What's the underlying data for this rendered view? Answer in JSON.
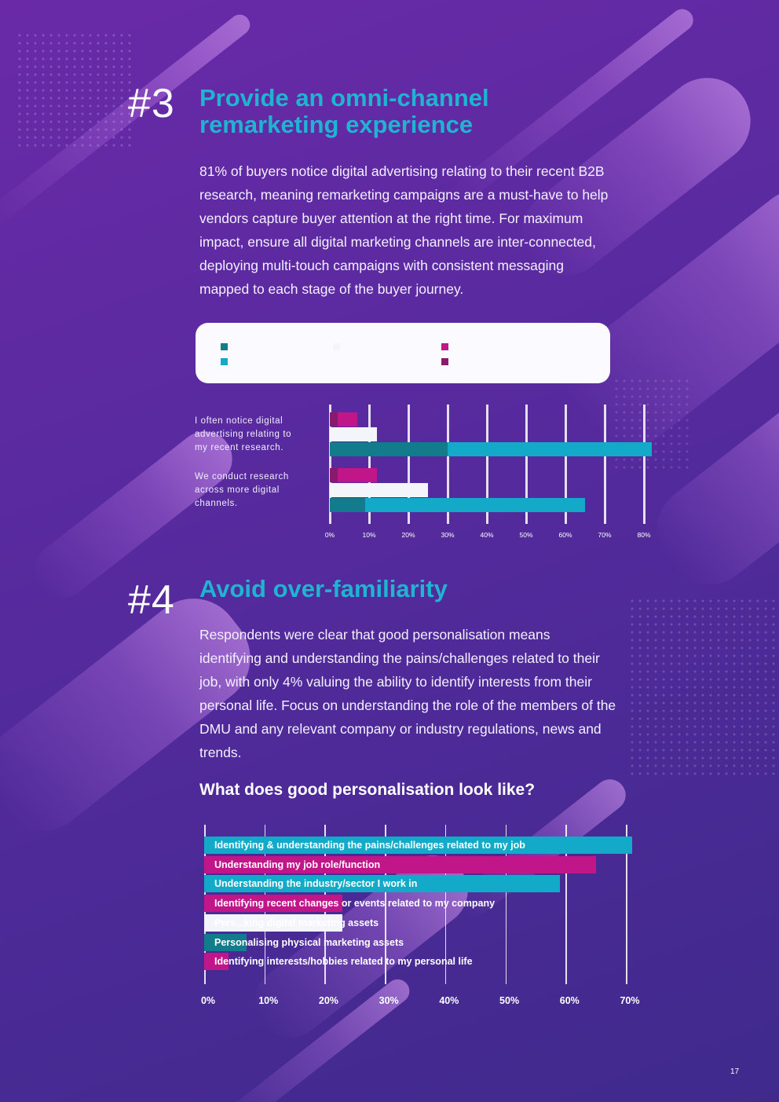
{
  "section3": {
    "number": "#3",
    "heading_line1": "Provide an omni-channel",
    "heading_line2": "remarketing experience",
    "paragraph_lines": [
      "81% of buyers notice digital advertising relating to their recent B2B",
      "research, meaning remarketing campaigns are a must-have to help",
      "vendors capture buyer attention at the right time. For maximum",
      "impact, ensure all digital marketing channels are inter-connected,",
      "deploying multi-touch campaigns with consistent messaging",
      "mapped to each stage of the buyer journey."
    ]
  },
  "section4": {
    "number": "#4",
    "heading": "Avoid over-familiarity",
    "paragraph_lines": [
      "Respondents were clear that good personalisation means",
      "identifying and understanding the pains/challenges related to their",
      "job, with only 4% valuing the ability to identify interests from their",
      "personal life. Focus on understanding the role of the members of the",
      "DMU and any relevant company or industry regulations, news and",
      "trends."
    ]
  },
  "colors": {
    "teal_dark": "#137c8c",
    "teal": "#12aac8",
    "white": "#f4f4fb",
    "magenta": "#c0168a",
    "plum": "#8a1a6e",
    "heading": "#1fb4cf"
  },
  "chart_data": [
    {
      "type": "bar",
      "orientation": "horizontal",
      "stacked": true,
      "categories": [
        "I often notice digital advertising relating to my recent research.",
        "We conduct research across more digital channels."
      ],
      "category_lines": [
        [
          "I often notice digital",
          "advertising relating to",
          "my recent research."
        ],
        [
          "We conduct research",
          "across more digital",
          "channels."
        ]
      ],
      "bar_rows": [
        {
          "category_index": 0,
          "segments": [
            {
              "color": "plum",
              "value": 2
            },
            {
              "color": "magenta",
              "value": 5
            }
          ]
        },
        {
          "category_index": 0,
          "segments": [
            {
              "color": "white",
              "value": 12
            }
          ]
        },
        {
          "category_index": 0,
          "segments": [
            {
              "color": "teal_dark",
              "value": 30
            },
            {
              "color": "teal",
              "value": 52
            }
          ]
        },
        {
          "category_index": 1,
          "segments": [
            {
              "color": "plum",
              "value": 2
            },
            {
              "color": "magenta",
              "value": 10
            }
          ]
        },
        {
          "category_index": 1,
          "segments": [
            {
              "color": "white",
              "value": 25
            }
          ]
        },
        {
          "category_index": 1,
          "segments": [
            {
              "color": "teal_dark",
              "value": 9
            },
            {
              "color": "teal",
              "value": 56
            }
          ]
        }
      ],
      "legend_swatches": [
        {
          "color": "teal_dark"
        },
        {
          "color": "teal"
        },
        {
          "color": "white"
        },
        {
          "color": "magenta"
        },
        {
          "color": "plum"
        }
      ],
      "xlim": [
        0,
        80
      ],
      "x_ticks": [
        "0%",
        "10%",
        "20%",
        "30%",
        "40%",
        "50%",
        "60%",
        "70%",
        "80%"
      ],
      "grid": true
    },
    {
      "type": "bar",
      "orientation": "horizontal",
      "title": "What does good personalisation look like?",
      "categories": [
        "Identifying & understanding the pains/challenges related to my job",
        "Understanding my job role/function",
        "Understanding the industry/sector I work in",
        "Identifying recent changes or events related to my company",
        "Personalising digital marketing assets",
        "Personalising physical marketing assets",
        "Identifying interests/hobbies related to my personal life"
      ],
      "visible_labels": [
        "Identifying & understanding the pains/challenges related to my job",
        "Understanding my job role/function",
        "Understanding the industry/sector I work in",
        "Identifying recent changes or events related to my company",
        "Pers...king digital marketing assets",
        "Personalising physical marketing assets",
        "Identifying interests/hobbies related to my personal life"
      ],
      "values": [
        71,
        65,
        59,
        23,
        23,
        7,
        4
      ],
      "bar_colors": [
        "teal",
        "magenta",
        "teal",
        "magenta",
        "white",
        "teal_dark",
        "magenta"
      ],
      "xlim": [
        0,
        70
      ],
      "x_ticks": [
        "0%",
        "10%",
        "20%",
        "30%",
        "40%",
        "50%",
        "60%",
        "70%"
      ],
      "grid": true
    }
  ],
  "page_number": "17"
}
